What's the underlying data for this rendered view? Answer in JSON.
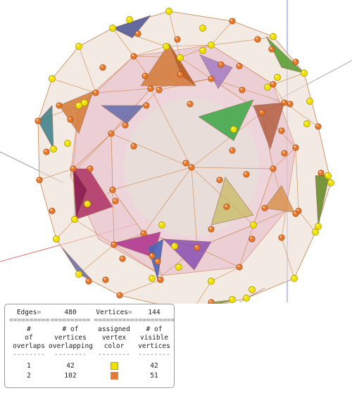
{
  "colors": {
    "vertex_single": "#f0e000",
    "vertex_double": "#e8782a",
    "edge_single": "#e0a060",
    "edge_double": "#a06040",
    "face_triangle_colors": [
      "#6a8e2a",
      "#b03868",
      "#5a64a8",
      "#d47a36",
      "#9c4a9a",
      "#44a84a",
      "#c8a040",
      "#3a7c88"
    ]
  },
  "summary": {
    "edges_label": "Edges",
    "edges_value": "480",
    "vertices_label": "Vertices",
    "vertices_value": "144",
    "eq_sign": "=",
    "sep_eq": "==========",
    "sep_dash": "--------"
  },
  "columns": [
    {
      "symbol": "#",
      "line1": "of",
      "line2": "overlaps"
    },
    {
      "symbol": "# of",
      "line1": "vertices",
      "line2": "overlapping"
    },
    {
      "symbol": "assigned",
      "line1": "vertex",
      "line2": "color"
    },
    {
      "symbol": "# of",
      "line1": "visible",
      "line2": "vertices"
    }
  ],
  "rows": [
    {
      "overlaps": "1",
      "vertices_overlapping": "42",
      "color": "yellow",
      "visible": "42"
    },
    {
      "overlaps": "2",
      "vertices_overlapping": "102",
      "color": "orange",
      "visible": "51"
    }
  ]
}
